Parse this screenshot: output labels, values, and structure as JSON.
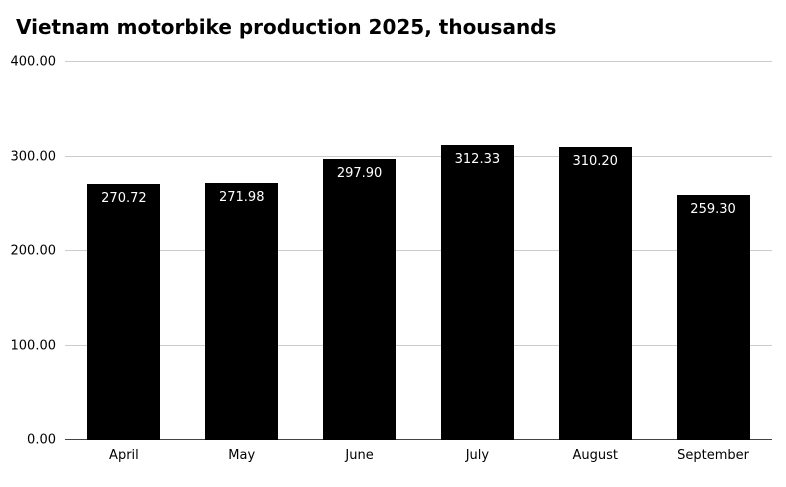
{
  "title": "Vietnam motorbike production 2025, thousands",
  "chart_data": {
    "type": "bar",
    "title": "Vietnam motorbike production 2025, thousands",
    "categories": [
      "April",
      "May",
      "June",
      "July",
      "August",
      "September"
    ],
    "values": [
      270.72,
      271.98,
      297.9,
      312.33,
      310.2,
      259.3
    ],
    "value_labels": [
      "270.72",
      "271.98",
      "297.90",
      "312.33",
      "310.20",
      "259.30"
    ],
    "xlabel": "",
    "ylabel": "",
    "ylim": [
      0,
      400
    ],
    "yticks": [
      0,
      100,
      200,
      300,
      400
    ],
    "ytick_labels": [
      "0.00",
      "100.00",
      "200.00",
      "300.00",
      "400.00"
    ],
    "grid": true,
    "legend": "none",
    "colors": {
      "bar": "#000000",
      "bar_label": "#ffffff",
      "grid": "#cccccc",
      "axis": "#444444",
      "background": "#ffffff",
      "text": "#000000"
    }
  }
}
